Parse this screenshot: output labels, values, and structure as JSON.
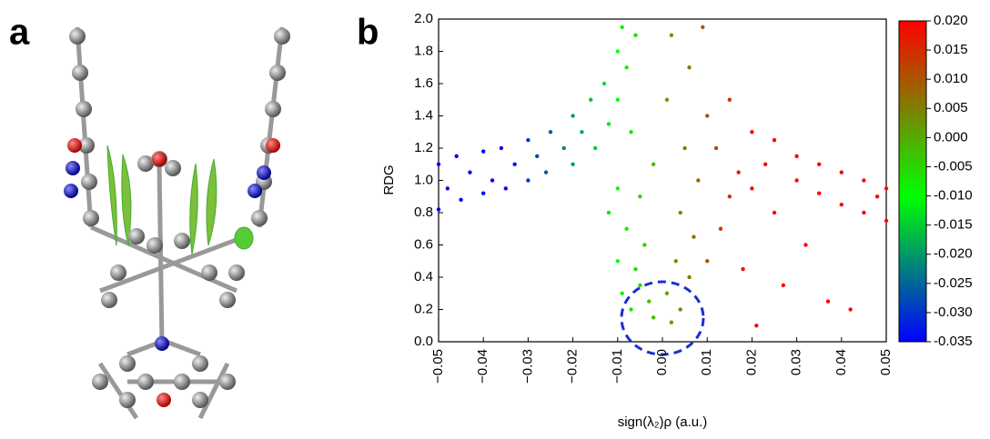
{
  "panel_labels": [
    "a",
    "b"
  ],
  "chart_data": {
    "type": "scatter",
    "x_label": "sign(λ₂)ρ (a.u.)",
    "y_label": "RDG",
    "xlim": [
      -0.05,
      0.05
    ],
    "ylim": [
      0,
      2
    ],
    "xticks": [
      {
        "value": -0.05,
        "label": "−0.05"
      },
      {
        "value": -0.04,
        "label": "−0.04"
      },
      {
        "value": -0.03,
        "label": "−0.03"
      },
      {
        "value": -0.02,
        "label": "−0.02"
      },
      {
        "value": -0.01,
        "label": "−0.01"
      },
      {
        "value": 0,
        "label": "0.00"
      },
      {
        "value": 0.01,
        "label": "0.01"
      },
      {
        "value": 0.02,
        "label": "0.02"
      },
      {
        "value": 0.03,
        "label": "0.03"
      },
      {
        "value": 0.04,
        "label": "0.04"
      },
      {
        "value": 0.05,
        "label": "0.05"
      }
    ],
    "yticks": [
      {
        "value": 0,
        "label": "0.0"
      },
      0.2,
      0.4,
      0.6,
      0.8,
      {
        "value": 1,
        "label": "1.0"
      },
      1.2,
      1.4,
      1.6,
      1.8,
      {
        "value": 2,
        "label": "2.0"
      }
    ],
    "x": [
      -0.05,
      -0.05,
      -0.048,
      -0.046,
      -0.045,
      -0.043,
      -0.04,
      -0.04,
      -0.038,
      -0.036,
      -0.035,
      -0.033,
      -0.03,
      -0.03,
      -0.028,
      -0.026,
      -0.025,
      -0.022,
      -0.02,
      -0.02,
      -0.018,
      -0.016,
      -0.015,
      -0.013,
      -0.012,
      -0.01,
      -0.01,
      -0.009,
      -0.008,
      -0.007,
      -0.006,
      -0.01,
      -0.009,
      -0.008,
      -0.007,
      -0.006,
      -0.005,
      -0.004,
      -0.003,
      -0.002,
      -0.002,
      -0.005,
      -0.012,
      -0.01,
      0.001,
      0.001,
      0.002,
      0.002,
      0.003,
      0.004,
      0.004,
      0.005,
      0.006,
      0.006,
      0.007,
      0.008,
      0.009,
      0.01,
      0.01,
      0.012,
      0.013,
      0.015,
      0.015,
      0.017,
      0.018,
      0.02,
      0.02,
      0.021,
      0.023,
      0.025,
      0.025,
      0.027,
      0.03,
      0.03,
      0.032,
      0.035,
      0.035,
      0.037,
      0.04,
      0.04,
      0.042,
      0.045,
      0.045,
      0.048,
      0.05,
      0.05
    ],
    "y": [
      0.82,
      1.1,
      0.95,
      1.15,
      0.88,
      1.05,
      0.92,
      1.18,
      1.0,
      1.2,
      0.95,
      1.1,
      1.0,
      1.25,
      1.15,
      1.05,
      1.3,
      1.2,
      1.1,
      1.4,
      1.3,
      1.5,
      1.2,
      1.6,
      1.35,
      1.8,
      1.5,
      1.95,
      1.7,
      1.3,
      1.9,
      0.5,
      0.3,
      0.7,
      0.2,
      0.45,
      0.9,
      0.6,
      0.25,
      1.1,
      0.15,
      0.35,
      0.8,
      0.95,
      0.3,
      1.5,
      0.12,
      1.9,
      0.5,
      0.8,
      0.2,
      1.2,
      0.4,
      1.7,
      0.65,
      1.0,
      1.95,
      0.5,
      1.4,
      1.2,
      0.7,
      1.5,
      0.9,
      1.05,
      0.45,
      1.3,
      0.95,
      0.1,
      1.1,
      1.25,
      0.8,
      0.35,
      1.0,
      1.15,
      0.6,
      0.92,
      1.1,
      0.25,
      0.85,
      1.05,
      0.2,
      0.8,
      1.0,
      0.9,
      0.75,
      0.95
    ],
    "colorbar": {
      "lim": [
        -0.035,
        0.02
      ],
      "ticks": [
        {
          "value": 0.02,
          "label": "0.020"
        },
        {
          "value": 0.015,
          "label": "0.015"
        },
        {
          "value": 0.01,
          "label": "0.010"
        },
        {
          "value": 0.005,
          "label": "0.005"
        },
        {
          "value": 0,
          "label": "0.000"
        },
        {
          "value": -0.005,
          "label": "-0.005"
        },
        {
          "value": -0.01,
          "label": "-0.010"
        },
        {
          "value": -0.015,
          "label": "-0.015"
        },
        {
          "value": -0.02,
          "label": "-0.020"
        },
        {
          "value": -0.025,
          "label": "-0.025"
        },
        {
          "value": -0.03,
          "label": "-0.030"
        },
        {
          "value": -0.035,
          "label": "-0.035"
        }
      ],
      "colormap": [
        {
          "value": -0.035,
          "color": "#0000ff"
        },
        {
          "value": -0.01,
          "color": "#00ff00"
        },
        {
          "value": 0.02,
          "color": "#ff0000"
        }
      ]
    }
  }
}
